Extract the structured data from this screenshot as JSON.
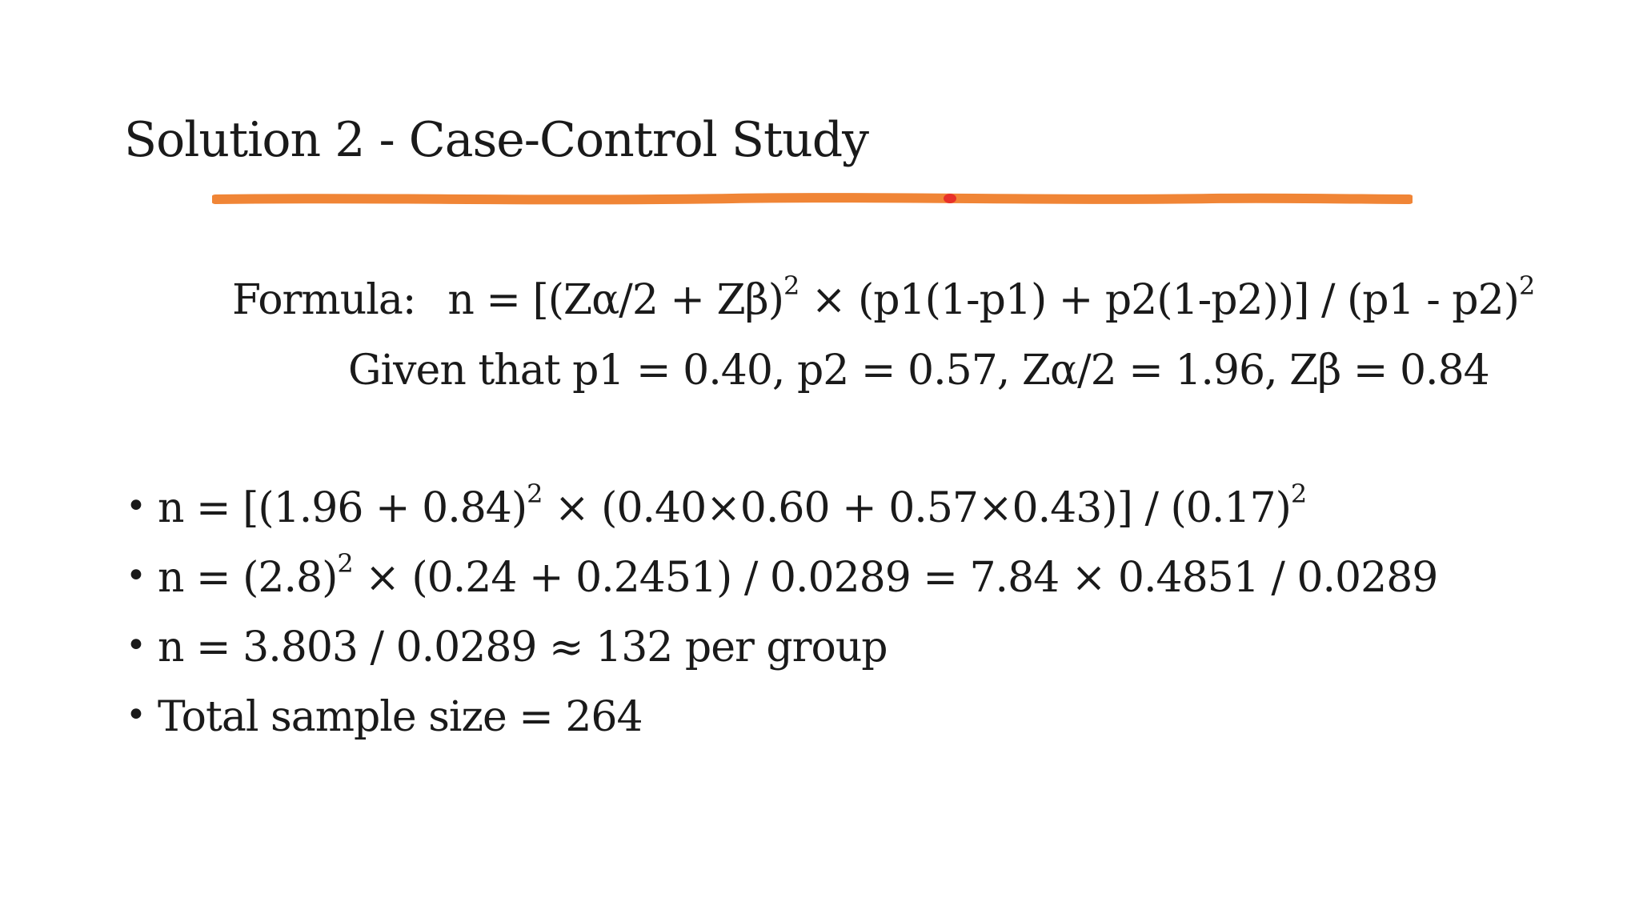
{
  "slide": {
    "title": "Solution 2 - Case-Control Study",
    "accent_color": "#F08536",
    "accent_dot_color": "#E8312A",
    "formula": {
      "label": "Formula:",
      "expr_part1": "n = [(Zα/2 + Zβ)",
      "exp1": "2",
      "expr_part2": " × (p1(1-p1) + p2(1-p2))] / (p1 - p2)",
      "exp2": "2"
    },
    "given": "Given that p1 = 0.40, p2 = 0.57, Zα/2 = 1.96, Zβ = 0.84",
    "bullets": [
      {
        "bullet_symbol": "•",
        "part1": "n = [(1.96 + 0.84)",
        "exp1": "2",
        "part2": " × (0.40×0.60 + 0.57×0.43)] / (0.17)",
        "exp2": "2"
      },
      {
        "bullet_symbol": "•",
        "part1": "n = (2.8)",
        "exp1": "2",
        "part2": " × (0.24 + 0.2451) / 0.0289 = 7.84 × 0.4851 / 0.0289"
      },
      {
        "bullet_symbol": "•",
        "part1": "n = 3.803 / 0.0289 ≈ 132 per group"
      },
      {
        "bullet_symbol": "•",
        "part1": "Total sample size = 264"
      }
    ]
  }
}
